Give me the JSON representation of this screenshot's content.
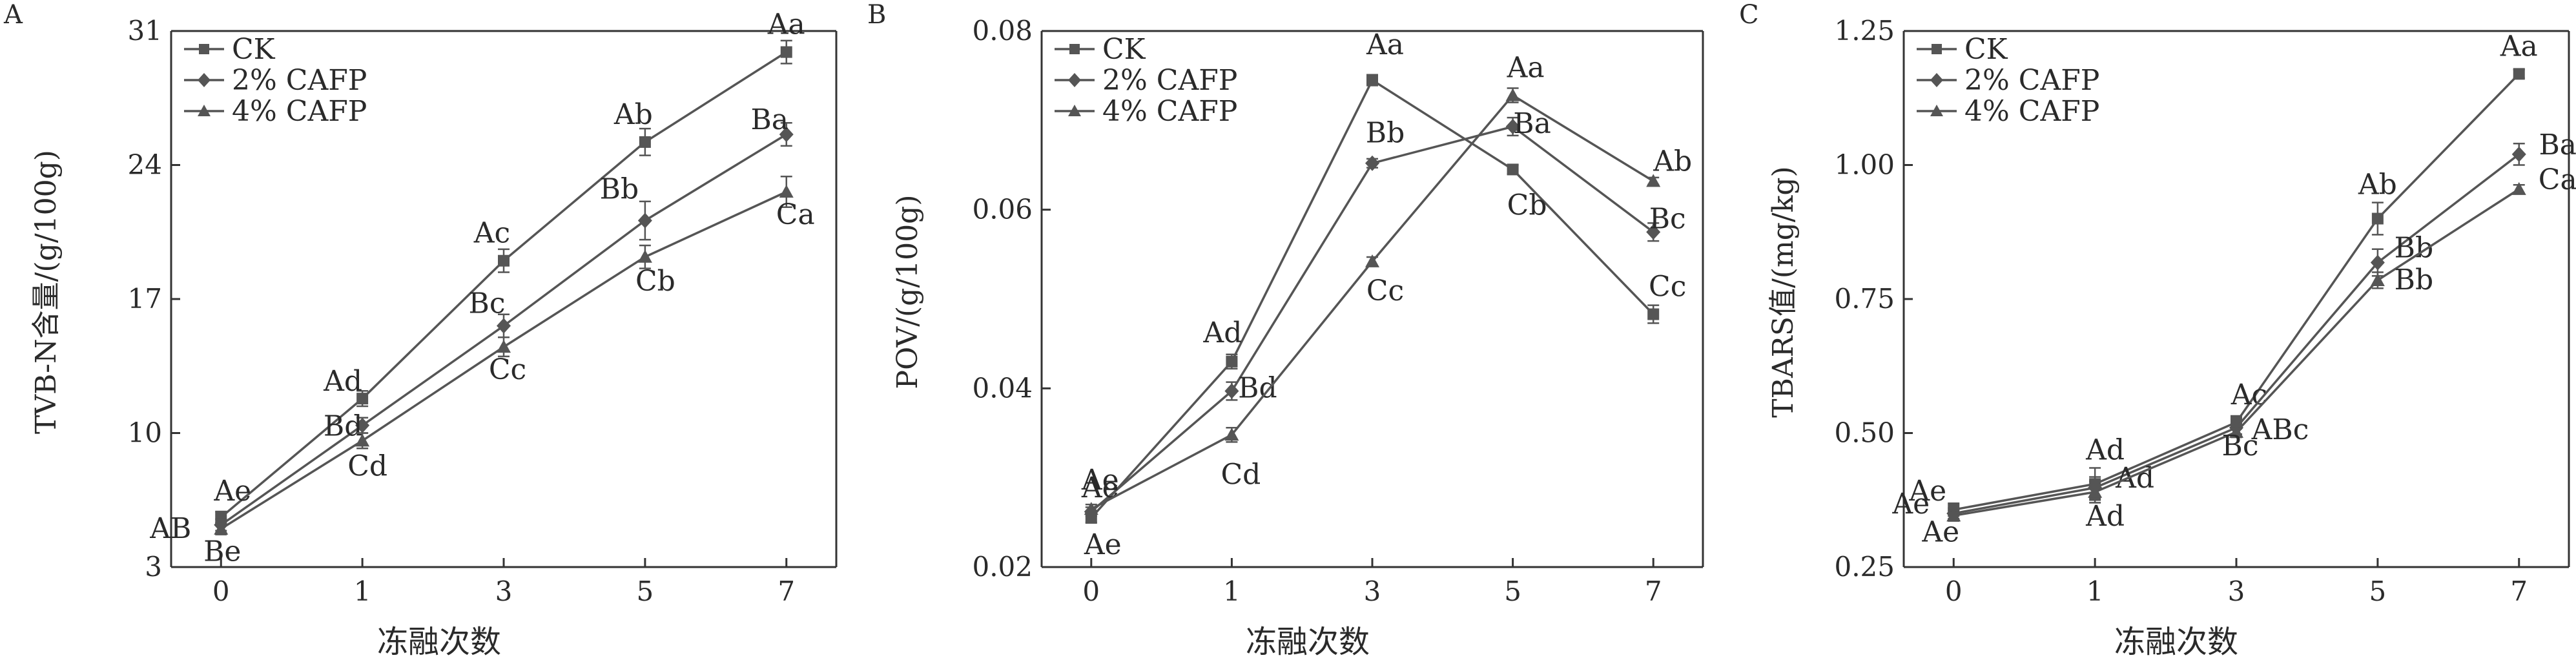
{
  "colors": {
    "axis": "#333333",
    "text": "#2a2a2a",
    "series": "#555555"
  },
  "chart_data": [
    {
      "type": "line",
      "panel_letter": "A",
      "xlabel": "冻融次数",
      "ylabel": "TVB-N含量/(g/100g)",
      "categories": [
        "0",
        "1",
        "3",
        "5",
        "7"
      ],
      "ylim": [
        3,
        31
      ],
      "yticks": [
        "3",
        "10",
        "17",
        "24",
        "31"
      ],
      "legend_position": "top-left",
      "series": [
        {
          "name": "CK",
          "marker": "square",
          "values": [
            5.6,
            11.8,
            19.0,
            25.2,
            29.9
          ],
          "errors": [
            0.3,
            0.4,
            0.6,
            0.7,
            0.6
          ],
          "labels": [
            "Ae",
            "Ad",
            "Ac",
            "Ab",
            "Aa"
          ]
        },
        {
          "name": "2% CAFP",
          "marker": "diamond",
          "values": [
            5.2,
            10.4,
            15.6,
            21.1,
            25.6
          ],
          "errors": [
            0.3,
            0.4,
            0.6,
            1.0,
            0.6
          ],
          "labels": [
            "AB",
            "Bd",
            "Bc",
            "Bb",
            "Ba"
          ]
        },
        {
          "name": "4% CAFP",
          "marker": "triangle",
          "values": [
            5.0,
            9.6,
            14.5,
            19.2,
            22.6
          ],
          "errors": [
            0.3,
            0.4,
            0.5,
            0.6,
            0.8
          ],
          "labels": [
            "Be",
            "Cd",
            "Cc",
            "Cb",
            "Ca"
          ]
        }
      ]
    },
    {
      "type": "line",
      "panel_letter": "B",
      "xlabel": "冻融次数",
      "ylabel": "POV/(g/100g)",
      "categories": [
        "0",
        "1",
        "3",
        "5",
        "7"
      ],
      "ylim": [
        0.02,
        0.08
      ],
      "yticks": [
        "0.02",
        "0.04",
        "0.06",
        "0.08"
      ],
      "legend_position": "top-left",
      "series": [
        {
          "name": "CK",
          "marker": "square",
          "values": [
            0.0255,
            0.043,
            0.0745,
            0.0645,
            0.0483
          ],
          "errors": [
            0.0005,
            0.0008,
            0.0006,
            0.0005,
            0.001
          ],
          "labels": [
            "Ae",
            "Ad",
            "Aa",
            "Cb",
            "Cc"
          ]
        },
        {
          "name": "2% CAFP",
          "marker": "diamond",
          "values": [
            0.0262,
            0.0397,
            0.0652,
            0.0693,
            0.0575
          ],
          "errors": [
            0.0005,
            0.001,
            0.0005,
            0.001,
            0.001
          ],
          "labels": [
            "Ae",
            "Bd",
            "Bb",
            "Ba",
            "Bc"
          ]
        },
        {
          "name": "4% CAFP",
          "marker": "triangle",
          "values": [
            0.0265,
            0.0348,
            0.0542,
            0.0728,
            0.0632
          ],
          "errors": [
            0.0005,
            0.0008,
            0.0005,
            0.0008,
            0.0004
          ],
          "labels": [
            "Ae",
            "Cd",
            "Cc",
            "Aa",
            "Ab"
          ]
        }
      ]
    },
    {
      "type": "line",
      "panel_letter": "C",
      "xlabel": "冻融次数",
      "ylabel": "TBARS值/(mg/kg)",
      "categories": [
        "0",
        "1",
        "3",
        "5",
        "7"
      ],
      "ylim": [
        0.25,
        1.25
      ],
      "yticks": [
        "0.25",
        "0.50",
        "0.75",
        "1.00",
        "1.25"
      ],
      "legend_position": "top-left",
      "series": [
        {
          "name": "CK",
          "marker": "square",
          "values": [
            0.357,
            0.405,
            0.52,
            0.9,
            1.17
          ],
          "errors": [
            0.012,
            0.03,
            0.012,
            0.03,
            0.008
          ],
          "labels": [
            "Ae",
            "Ad",
            "Ac",
            "Ab",
            "Aa"
          ]
        },
        {
          "name": "2% CAFP",
          "marker": "diamond",
          "values": [
            0.35,
            0.398,
            0.51,
            0.818,
            1.02
          ],
          "errors": [
            0.01,
            0.02,
            0.012,
            0.025,
            0.02
          ],
          "labels": [
            "Ae",
            "Ad",
            "ABc",
            "Bb",
            "Ba"
          ]
        },
        {
          "name": "4% CAFP",
          "marker": "triangle",
          "values": [
            0.346,
            0.39,
            0.502,
            0.785,
            0.955
          ],
          "errors": [
            0.01,
            0.02,
            0.01,
            0.015,
            0.008
          ],
          "labels": [
            "Ae",
            "Ad",
            "Bc",
            "Bb",
            "Ca"
          ]
        }
      ]
    }
  ]
}
